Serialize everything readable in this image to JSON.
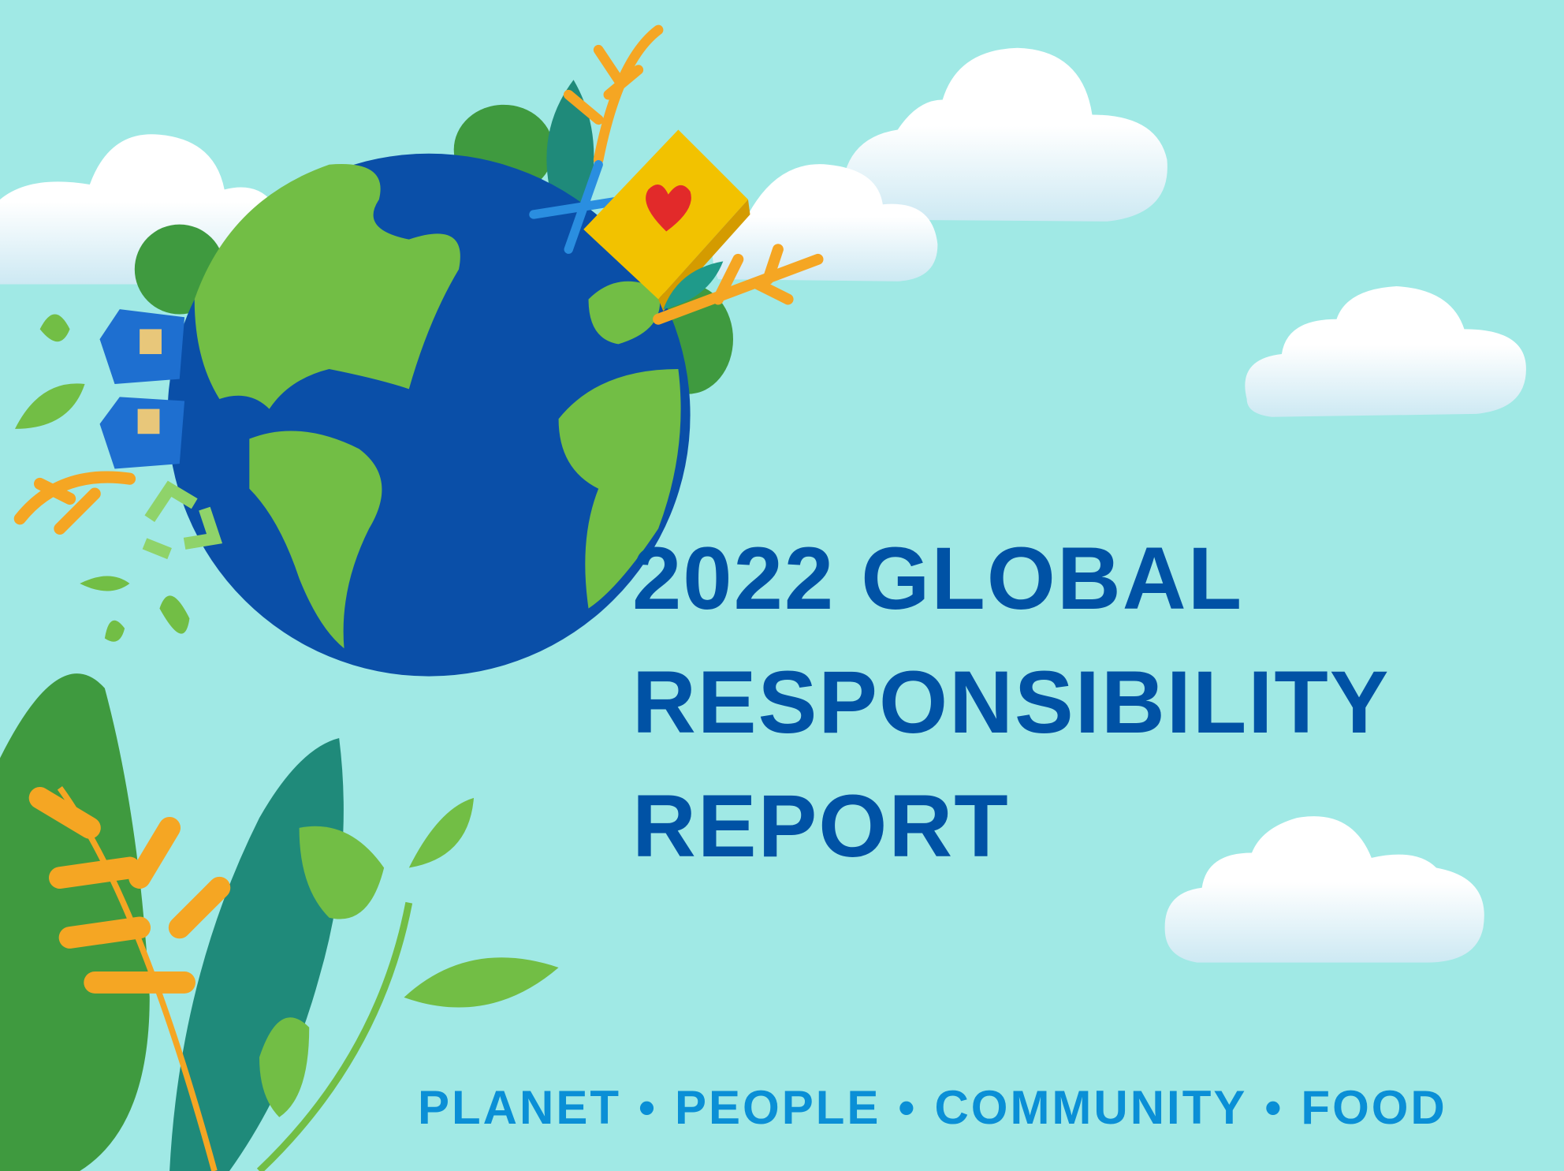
{
  "title": {
    "line1": "2022 GLOBAL",
    "line2": "RESPONSIBILITY",
    "line3": "REPORT"
  },
  "tagline": {
    "items": [
      "PLANET",
      "PEOPLE",
      "COMMUNITY",
      "FOOD"
    ],
    "separator": "•"
  },
  "colors": {
    "background": "#a0e9e5",
    "title": "#0052a5",
    "tagline": "#0a8fd6",
    "ocean": "#0a4fa8",
    "land": "#72be45"
  },
  "illustration": {
    "icons": [
      "globe-icon",
      "cloud-icon",
      "leaf-icon",
      "house-icon",
      "recycle-icon",
      "fork-spoon-icon",
      "heart-box-icon"
    ]
  }
}
